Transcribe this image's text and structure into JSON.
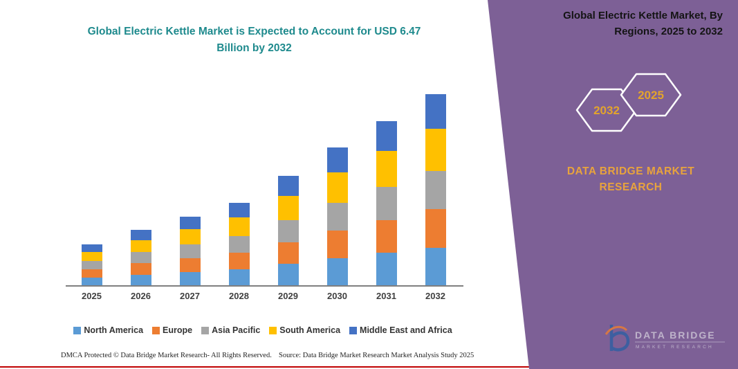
{
  "title": "Global Electric Kettle Market is Expected to Account for USD 6.47 Billion by 2032",
  "right_panel": {
    "title": "Global Electric Kettle Market, By Regions, 2025 to 2032",
    "hex_back_year": "2032",
    "hex_front_year": "2025",
    "brand": "DATA BRIDGE MARKET RESEARCH",
    "logo_line1": "DATA BRIDGE",
    "logo_line2": "MARKET RESEARCH"
  },
  "footer": {
    "left": "DMCA Protected © Data Bridge Market Research-  All Rights Reserved.",
    "right": "Source: Data Bridge Market Research  Market Analysis Study 2025"
  },
  "colors": {
    "panel_purple": "#7D6096",
    "title_teal": "#1E8A8D",
    "brand_gold": "#E8A33D",
    "footer_rule_red": "#C00000"
  },
  "chart_data": {
    "type": "bar",
    "stacked": true,
    "title": "Global Electric Kettle Market is Expected to Account for USD 6.47 Billion by 2032",
    "unit": "USD Billion",
    "categories": [
      "2025",
      "2026",
      "2027",
      "2028",
      "2029",
      "2030",
      "2031",
      "2032"
    ],
    "totals": [
      1.41,
      1.89,
      2.34,
      2.81,
      3.7,
      4.66,
      5.55,
      6.47
    ],
    "series": [
      {
        "name": "North America",
        "color": "#5B9BD5",
        "values": [
          0.28,
          0.38,
          0.47,
          0.56,
          0.74,
          0.93,
          1.11,
          1.29
        ]
      },
      {
        "name": "Europe",
        "color": "#ED7D31",
        "values": [
          0.28,
          0.38,
          0.47,
          0.56,
          0.74,
          0.93,
          1.11,
          1.29
        ]
      },
      {
        "name": "Asia Pacific",
        "color": "#A5A5A5",
        "values": [
          0.28,
          0.38,
          0.47,
          0.56,
          0.74,
          0.93,
          1.11,
          1.29
        ]
      },
      {
        "name": "South America",
        "color": "#FFC000",
        "values": [
          0.31,
          0.41,
          0.51,
          0.62,
          0.81,
          1.03,
          1.22,
          1.42
        ]
      },
      {
        "name": "Middle East and Africa",
        "color": "#4472C4",
        "values": [
          0.26,
          0.34,
          0.42,
          0.51,
          0.67,
          0.84,
          1.0,
          1.18
        ]
      }
    ],
    "xlabel": "",
    "ylabel": "",
    "ylim": [
      0,
      7
    ],
    "grid": false,
    "legend_position": "bottom"
  }
}
